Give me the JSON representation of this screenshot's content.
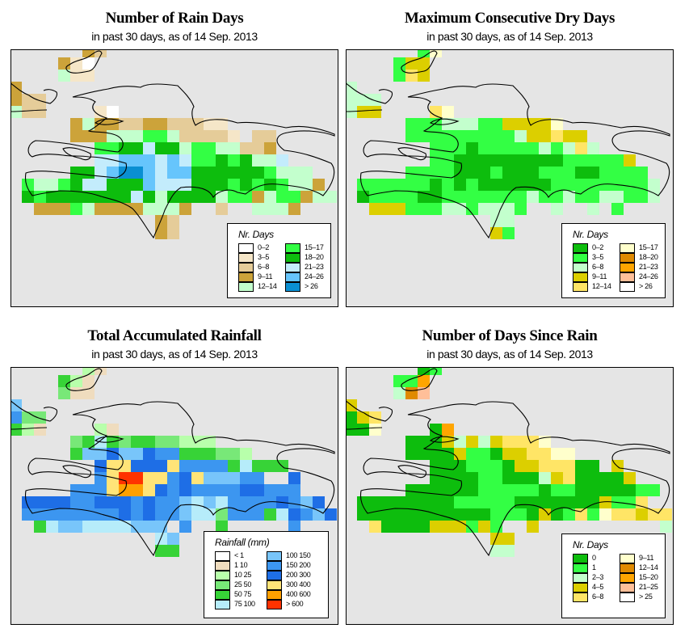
{
  "panels": [
    {
      "id": "rain-days",
      "title": "Number of Rain Days",
      "subtitle": "in past 30 days, as of  14 Sep. 2013",
      "legend": {
        "title": "Nr. Days",
        "items": [
          {
            "label": "0–2",
            "color": "#ffffff"
          },
          {
            "label": "3–5",
            "color": "#f5e6c8"
          },
          {
            "label": "6–8",
            "color": "#e5cc99"
          },
          {
            "label": "9–11",
            "color": "#cca33a"
          },
          {
            "label": "12–14",
            "color": "#c3ffcd"
          },
          {
            "label": "15–17",
            "color": "#33ff44"
          },
          {
            "label": "18–20",
            "color": "#0dbd0d"
          },
          {
            "label": "21–23",
            "color": "#c3ecfc"
          },
          {
            "label": "24–26",
            "color": "#66c5fc"
          },
          {
            "label": "> 26",
            "color": "#0a8fd2"
          }
        ]
      },
      "grid_rows": [
        "......32..................",
        "....310...................",
        "....411...................",
        "3.........................",
        "322.......................",
        "422....10.................",
        ".....3433223322211........",
        ".....33344455422221.22....",
        ".......556676645544223....",
        ".......7788878755656447...",
        ".....66789987886666665444.",
        ".5445677666877766656565443",
        ".65666666676466664553455344",
        "..3335433334443..2..4443...",
        "............32.............",
        "............32............."
      ]
    },
    {
      "id": "max-dry-days",
      "title": "Maximum Consecutive Dry Days",
      "subtitle": "in past 30 days, as of  14 Sep. 2013",
      "legend": {
        "title": "Nr. Days",
        "items": [
          {
            "label": "0–2",
            "color": "#0dbd0d"
          },
          {
            "label": "3–5",
            "color": "#33ff44"
          },
          {
            "label": "6–8",
            "color": "#c3ffcd"
          },
          {
            "label": "9–11",
            "color": "#dccf00"
          },
          {
            "label": "12–14",
            "color": "#ffe566"
          },
          {
            "label": "15–17",
            "color": "#ffffcc"
          },
          {
            "label": "18–20",
            "color": "#e08a00"
          },
          {
            "label": "21–23",
            "color": "#ffa500"
          },
          {
            "label": "24–26",
            "color": "#ffbf99"
          },
          {
            "label": "> 26",
            "color": "#ffffff"
          }
        ]
      },
      "grid_rows": [
        "......15..................",
        "....133...................",
        "....143...................",
        "2.........................",
        "222.......................",
        "233....45.................",
        ".....1112221133335........",
        ".....111111111233433......",
        ".......11101111121242.....",
        ".......11000000000111113..",
        ".....11110001000111001111.",
        ".1111110101000000111111112",
        ".0111100111111121121122112",
        "..3331112212221..2..2.1...",
        "............22.............",
        "............31............."
      ]
    },
    {
      "id": "total-rainfall",
      "title": "Total Accumulated Rainfall",
      "subtitle": "in past 30 days, as of  14 Sep. 2013",
      "legend": {
        "title": "Rainfall (mm)",
        "items": [
          {
            "label": "< 1",
            "color": "#ffffff"
          },
          {
            "label": "1  10",
            "color": "#efdcbe"
          },
          {
            "label": "10  25",
            "color": "#b8ffab"
          },
          {
            "label": "25  50",
            "color": "#78e878"
          },
          {
            "label": "50  75",
            "color": "#37d337"
          },
          {
            "label": "75  100",
            "color": "#b6ecfa"
          },
          {
            "label": "100  150",
            "color": "#78c5fa"
          },
          {
            "label": "150  200",
            "color": "#3c96f0"
          },
          {
            "label": "200  300",
            "color": "#1e6ee6"
          },
          {
            "label": "300  400",
            "color": "#ffe478"
          },
          {
            "label": "400  600",
            "color": "#ffa000"
          },
          {
            "label": "> 600",
            "color": "#ff3200"
          }
        ]
      },
      "grid_rows": [
        "......21..................",
        "....421...................",
        "....311...................",
        "6.........................",
        "733.......................",
        "421....21.................",
        ".....345434433222.........",
        ".....466866877444332......",
        ".......8998889777745444...",
        ".......79BB9978966677..8..",
        ".....7779AA9878777788777..",
        ".8888778887877656577778768",
        ".77777777878776553777458768",
        "..45665555666.7..4.....7...",
        "............56.............",
        "............44............."
      ]
    },
    {
      "id": "days-since-rain",
      "title": "Number of Days Since Rain",
      "subtitle": "in past 30 days, as of  14 Sep. 2013",
      "legend": {
        "title": "Nr. Days",
        "items": [
          {
            "label": "0",
            "color": "#0dbd0d"
          },
          {
            "label": "1",
            "color": "#33ff44"
          },
          {
            "label": "2–3",
            "color": "#c3ffcd"
          },
          {
            "label": "4–5",
            "color": "#dccf00"
          },
          {
            "label": "6–8",
            "color": "#ffe566"
          },
          {
            "label": "9–11",
            "color": "#ffffcc"
          },
          {
            "label": "12–14",
            "color": "#e08a00"
          },
          {
            "label": "15–20",
            "color": "#ffa500"
          },
          {
            "label": "21–25",
            "color": "#ffbf99"
          },
          {
            "label": "> 25",
            "color": "#ffffff"
          }
        ]
      },
      "grid_rows": [
        "......01..................",
        "....117...................",
        "....268...................",
        "3.........................",
        "034.......................",
        "005....07.................",
        ".....000323234445.........",
        ".....00003110334455.......",
        ".......00011103344400.3...",
        ".......00001100023400003..",
        ".....000000111110110000011",
        ".000000001111100000003114",
        ".00000000000111030141544344",
        "..40000333131..3..........2",
        "............33.............",
        "............22............."
      ]
    }
  ],
  "grid_start_row": 3
}
